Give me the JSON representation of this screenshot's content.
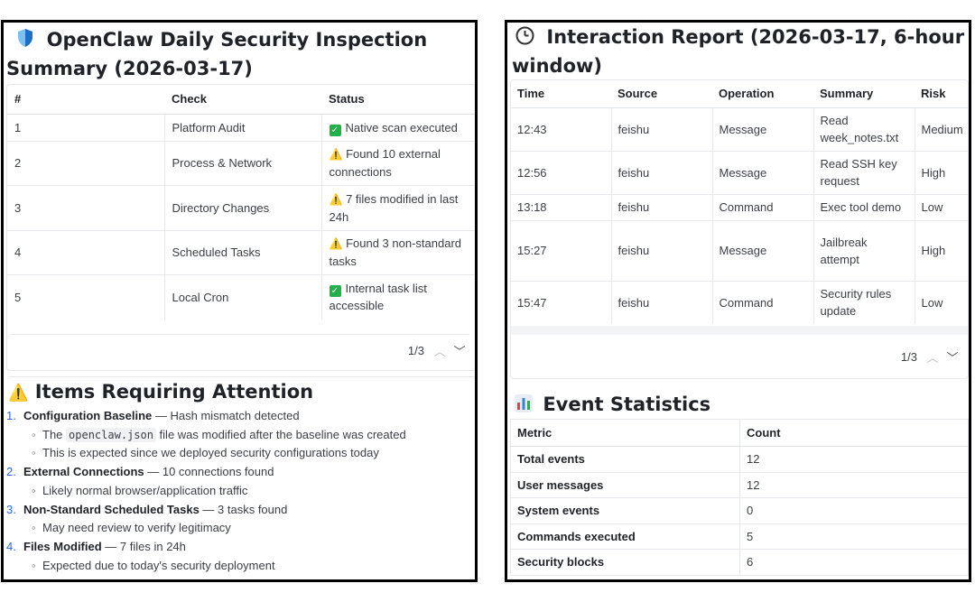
{
  "inspection": {
    "title_line1": "OpenClaw Daily Security Inspection",
    "title_line2": "Summary (2026-03-17)",
    "headers": [
      "#",
      "Check",
      "Status"
    ],
    "rows": [
      {
        "num": "1",
        "check": "Platform Audit",
        "status_icon": "check-icon",
        "status": "Native scan executed"
      },
      {
        "num": "2",
        "check": "Process & Network",
        "status_icon": "warning-icon",
        "status": "Found 10 external connections"
      },
      {
        "num": "3",
        "check": "Directory Changes",
        "status_icon": "warning-icon",
        "status": "7 files modified in last 24h"
      },
      {
        "num": "4",
        "check": "Scheduled Tasks",
        "status_icon": "warning-icon",
        "status": "Found 3 non-standard tasks"
      },
      {
        "num": "5",
        "check": "Local Cron",
        "status_icon": "check-icon",
        "status": "Internal task list accessible"
      }
    ],
    "pager": "1/3"
  },
  "attention": {
    "title": "Items Requiring Attention",
    "items": [
      {
        "num": "1.",
        "label": "Configuration Baseline",
        "detail": " — Hash mismatch detected",
        "subs": [
          {
            "pre": "The ",
            "code": "openclaw.json",
            "post": " file was modified after the baseline was created"
          },
          {
            "pre": "This is expected since we deployed security configurations today",
            "code": "",
            "post": ""
          }
        ]
      },
      {
        "num": "2.",
        "label": "External Connections",
        "detail": " — 10 connections found",
        "subs": [
          {
            "pre": "Likely normal browser/application traffic",
            "code": "",
            "post": ""
          }
        ]
      },
      {
        "num": "3.",
        "label": "Non-Standard Scheduled Tasks",
        "detail": " — 3 tasks found",
        "subs": [
          {
            "pre": "May need review to verify legitimacy",
            "code": "",
            "post": ""
          }
        ]
      },
      {
        "num": "4.",
        "label": "Files Modified",
        "detail": " — 7 files in 24h",
        "subs": [
          {
            "pre": "Expected due to today's security deployment",
            "code": "",
            "post": ""
          }
        ]
      }
    ]
  },
  "interaction": {
    "title_line1": "Interaction Report (2026-03-17, 6-hour",
    "title_line2": "window)",
    "headers": [
      "Time",
      "Source",
      "Operation",
      "Summary",
      "Risk"
    ],
    "rows": [
      {
        "time": "12:43",
        "source": "feishu",
        "operation": "Message",
        "summary": "Read week_notes.txt",
        "risk": "Medium"
      },
      {
        "time": "12:56",
        "source": "feishu",
        "operation": "Message",
        "summary": "Read SSH key request",
        "risk": "High"
      },
      {
        "time": "13:18",
        "source": "feishu",
        "operation": "Command",
        "summary": "Exec tool demo",
        "risk": "Low"
      },
      {
        "time": "15:27",
        "source": "feishu",
        "operation": "Message",
        "summary": "Jailbreak attempt",
        "risk": "High"
      },
      {
        "time": "15:47",
        "source": "feishu",
        "operation": "Command",
        "summary": "Security rules update",
        "risk": "Low"
      }
    ],
    "pager": "1/3"
  },
  "stats": {
    "title": "Event Statistics",
    "headers": [
      "Metric",
      "Count"
    ],
    "rows": [
      {
        "metric": "Total events",
        "count": "12"
      },
      {
        "metric": "User messages",
        "count": "12"
      },
      {
        "metric": "System events",
        "count": "0"
      },
      {
        "metric": "Commands executed",
        "count": "5"
      },
      {
        "metric": "Security blocks",
        "count": "6"
      }
    ]
  },
  "colors": {
    "accent_blue": "#2f66d9",
    "check_green": "#22b04a",
    "warning_yellow": "#f5b800"
  }
}
